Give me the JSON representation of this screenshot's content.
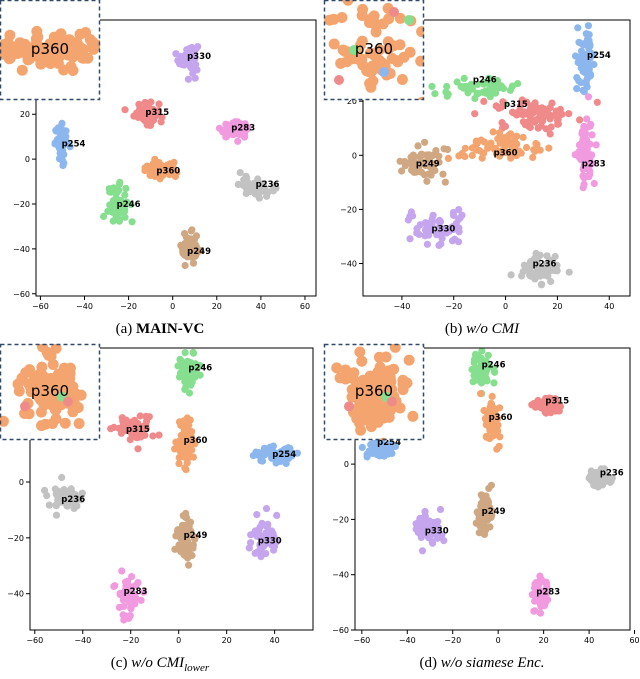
{
  "figure": {
    "captions": [
      {
        "letter": "(a)",
        "main": "MAIN-VC",
        "sub": "",
        "style": "bold"
      },
      {
        "letter": "(b)",
        "main": "w/o CMI",
        "sub": "",
        "style": "italic"
      },
      {
        "letter": "(c)",
        "main": "w/o CMI",
        "sub": "lower",
        "style": "italic"
      },
      {
        "letter": "(d)",
        "main": "w/o siamese Enc.",
        "sub": "",
        "style": "italic"
      }
    ]
  },
  "colors": {
    "p360": "#f4a56f",
    "p330": "#c5a6ee",
    "p315": "#f08a8a",
    "p283": "#f29ae0",
    "p254": "#8cb7ee",
    "p249": "#cfa883",
    "p246": "#86df8e",
    "p236": "#c2c2c2",
    "axis": "#000000",
    "inset_border": "#2f4a6a"
  },
  "chart_data": [
    {
      "type": "scatter",
      "title": "",
      "xlabel": "",
      "ylabel": "",
      "xlim": [
        -62,
        65
      ],
      "ylim": [
        -61,
        62
      ],
      "xticks": [
        -60,
        -40,
        -20,
        0,
        20,
        40,
        60
      ],
      "yticks": [
        -60,
        -40,
        -20,
        0,
        20
      ],
      "inset_label": "p360",
      "clusters": [
        {
          "speaker": "p330",
          "label": "p330",
          "x": 7,
          "y": 45,
          "label_x": 12,
          "label_y": 46,
          "spread_x": 4,
          "spread_y": 6,
          "n": 55
        },
        {
          "speaker": "p315",
          "label": "p315",
          "x": -12,
          "y": 21,
          "label_x": -7,
          "label_y": 21,
          "spread_x": 5,
          "spread_y": 5,
          "n": 55
        },
        {
          "speaker": "p283",
          "label": "p283",
          "x": 28,
          "y": 13,
          "label_x": 32,
          "label_y": 14,
          "spread_x": 6,
          "spread_y": 3,
          "n": 55
        },
        {
          "speaker": "p254",
          "label": "p254",
          "x": -50,
          "y": 7,
          "label_x": -45,
          "label_y": 7,
          "spread_x": 3,
          "spread_y": 7,
          "n": 50
        },
        {
          "speaker": "p360",
          "label": "p360",
          "x": -6,
          "y": -5,
          "label_x": -2,
          "label_y": -5,
          "spread_x": 7,
          "spread_y": 3,
          "n": 55
        },
        {
          "speaker": "p236",
          "label": "p236",
          "x": 38,
          "y": -12,
          "label_x": 43,
          "label_y": -11,
          "spread_x": 7,
          "spread_y": 4,
          "n": 55
        },
        {
          "speaker": "p246",
          "label": "p246",
          "x": -25,
          "y": -20,
          "label_x": -20,
          "label_y": -20,
          "spread_x": 4,
          "spread_y": 8,
          "n": 55
        },
        {
          "speaker": "p249",
          "label": "p249",
          "x": 8,
          "y": -40,
          "label_x": 12,
          "label_y": -41,
          "spread_x": 4,
          "spread_y": 6,
          "n": 55
        }
      ]
    },
    {
      "type": "scatter",
      "title": "",
      "xlabel": "",
      "ylabel": "",
      "xlim": [
        -55,
        48
      ],
      "ylim": [
        -52,
        50
      ],
      "xticks": [
        -40,
        -20,
        0,
        20,
        40
      ],
      "yticks": [
        -40,
        -20,
        0,
        20
      ],
      "inset_label": "p360",
      "clusters": [
        {
          "speaker": "p254",
          "label": "p254",
          "x": 31,
          "y": 35,
          "label_x": 36,
          "label_y": 37,
          "spread_x": 3,
          "spread_y": 10,
          "n": 60
        },
        {
          "speaker": "p246",
          "label": "p246",
          "x": -10,
          "y": 25,
          "label_x": -8,
          "label_y": 28,
          "spread_x": 14,
          "spread_y": 3,
          "n": 60
        },
        {
          "speaker": "p315",
          "label": "p315",
          "x": 12,
          "y": 15,
          "label_x": 4,
          "label_y": 19,
          "spread_x": 14,
          "spread_y": 5,
          "n": 75
        },
        {
          "speaker": "p360",
          "label": "p360",
          "x": -5,
          "y": 3,
          "label_x": 0,
          "label_y": 1,
          "spread_x": 16,
          "spread_y": 5,
          "n": 70
        },
        {
          "speaker": "p249",
          "label": "p249",
          "x": -32,
          "y": -3,
          "label_x": -30,
          "label_y": -3,
          "spread_x": 8,
          "spread_y": 6,
          "n": 60
        },
        {
          "speaker": "p283",
          "label": "p283",
          "x": 31,
          "y": 0,
          "label_x": 34,
          "label_y": -3,
          "spread_x": 3,
          "spread_y": 12,
          "n": 60
        },
        {
          "speaker": "p330",
          "label": "p330",
          "x": -27,
          "y": -27,
          "label_x": -24,
          "label_y": -27,
          "spread_x": 12,
          "spread_y": 5,
          "n": 60
        },
        {
          "speaker": "p236",
          "label": "p236",
          "x": 13,
          "y": -42,
          "label_x": 15,
          "label_y": -40,
          "spread_x": 7,
          "spread_y": 6,
          "n": 60
        }
      ]
    },
    {
      "type": "scatter",
      "title": "",
      "xlabel": "",
      "ylabel": "",
      "xlim": [
        -62,
        56
      ],
      "ylim": [
        -53,
        48
      ],
      "xticks": [
        -60,
        -40,
        -20,
        0,
        20,
        40
      ],
      "yticks": [
        -40,
        -20,
        0,
        20
      ],
      "inset_label": "p360",
      "clusters": [
        {
          "speaker": "p246",
          "label": "p246",
          "x": 4,
          "y": 40,
          "label_x": 9,
          "label_y": 41,
          "spread_x": 4,
          "spread_y": 6,
          "n": 55
        },
        {
          "speaker": "p315",
          "label": "p315",
          "x": -18,
          "y": 19,
          "label_x": -17,
          "label_y": 19,
          "spread_x": 7,
          "spread_y": 4,
          "n": 60
        },
        {
          "speaker": "p360",
          "label": "p360",
          "x": 3,
          "y": 14,
          "label_x": 7,
          "label_y": 15,
          "spread_x": 4,
          "spread_y": 8,
          "n": 55
        },
        {
          "speaker": "p254",
          "label": "p254",
          "x": 41,
          "y": 10,
          "label_x": 44,
          "label_y": 10,
          "spread_x": 8,
          "spread_y": 3,
          "n": 55
        },
        {
          "speaker": "p236",
          "label": "p236",
          "x": -47,
          "y": -6,
          "label_x": -44,
          "label_y": -6,
          "spread_x": 6,
          "spread_y": 4,
          "n": 50
        },
        {
          "speaker": "p249",
          "label": "p249",
          "x": 3,
          "y": -20,
          "label_x": 7,
          "label_y": -19,
          "spread_x": 4,
          "spread_y": 8,
          "n": 55
        },
        {
          "speaker": "p330",
          "label": "p330",
          "x": 36,
          "y": -20,
          "label_x": 38,
          "label_y": -21,
          "spread_x": 5,
          "spread_y": 6,
          "n": 55
        },
        {
          "speaker": "p283",
          "label": "p283",
          "x": -21,
          "y": -40,
          "label_x": -18,
          "label_y": -39,
          "spread_x": 4,
          "spread_y": 7,
          "n": 55
        }
      ]
    },
    {
      "type": "scatter",
      "title": "",
      "xlabel": "",
      "ylabel": "",
      "xlim": [
        -63,
        58
      ],
      "ylim": [
        -60,
        42
      ],
      "xticks": [
        -60,
        -40,
        -20,
        0,
        20,
        40,
        60
      ],
      "yticks": [
        -60,
        -40,
        -20,
        0,
        20
      ],
      "inset_label": "p360",
      "clusters": [
        {
          "speaker": "p246",
          "label": "p246",
          "x": -7,
          "y": 34,
          "label_x": -2,
          "label_y": 36,
          "spread_x": 4,
          "spread_y": 6,
          "n": 55
        },
        {
          "speaker": "p315",
          "label": "p315",
          "x": 22,
          "y": 21,
          "label_x": 26,
          "label_y": 23,
          "spread_x": 6,
          "spread_y": 3,
          "n": 55
        },
        {
          "speaker": "p360",
          "label": "p360",
          "x": -3,
          "y": 16,
          "label_x": 1,
          "label_y": 17,
          "spread_x": 3,
          "spread_y": 8,
          "n": 55
        },
        {
          "speaker": "p254",
          "label": "p254",
          "x": -52,
          "y": 6,
          "label_x": -48,
          "label_y": 8,
          "spread_x": 6,
          "spread_y": 3,
          "n": 55
        },
        {
          "speaker": "p236",
          "label": "p236",
          "x": 45,
          "y": -5,
          "label_x": 50,
          "label_y": -3,
          "spread_x": 6,
          "spread_y": 3,
          "n": 55
        },
        {
          "speaker": "p249",
          "label": "p249",
          "x": -6,
          "y": -17,
          "label_x": -2,
          "label_y": -17,
          "spread_x": 3,
          "spread_y": 8,
          "n": 55
        },
        {
          "speaker": "p330",
          "label": "p330",
          "x": -31,
          "y": -24,
          "label_x": -27,
          "label_y": -24,
          "spread_x": 5,
          "spread_y": 6,
          "n": 55
        },
        {
          "speaker": "p283",
          "label": "p283",
          "x": 18,
          "y": -47,
          "label_x": 22,
          "label_y": -46,
          "spread_x": 3,
          "spread_y": 6,
          "n": 55
        }
      ]
    }
  ]
}
